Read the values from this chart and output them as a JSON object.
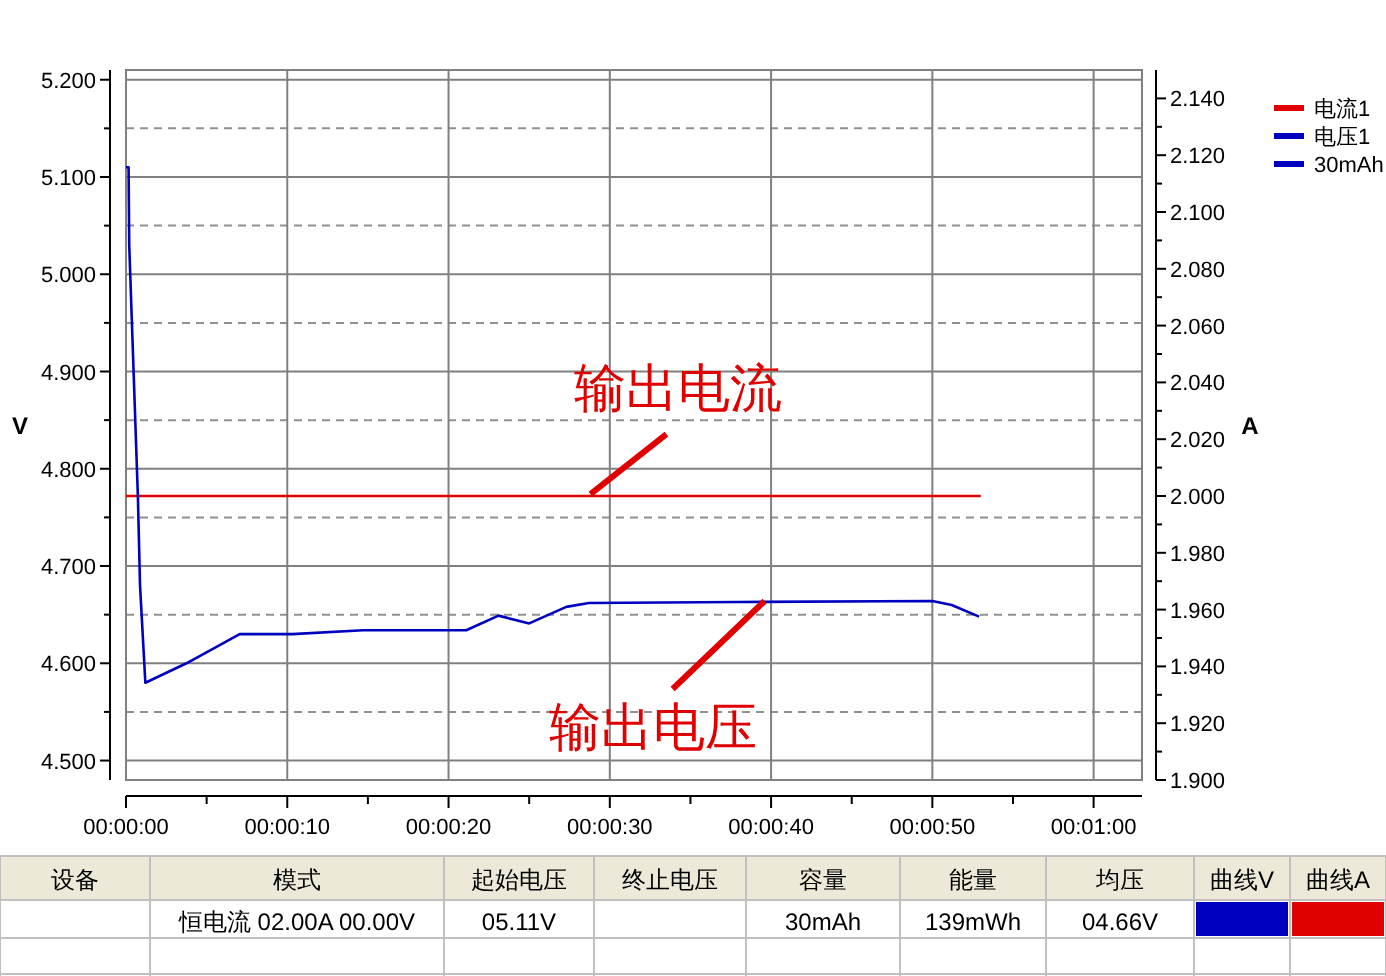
{
  "chart_data": {
    "type": "line",
    "xlabel": null,
    "ylabel": "V",
    "y2label": "A",
    "xlim": [
      0,
      63
    ],
    "xticks": [
      {
        "value": 0,
        "label": "00:00:00"
      },
      {
        "value": 10,
        "label": "00:00:10"
      },
      {
        "value": 20,
        "label": "00:00:20"
      },
      {
        "value": 30,
        "label": "00:00:30"
      },
      {
        "value": 40,
        "label": "00:00:40"
      },
      {
        "value": 50,
        "label": "00:00:50"
      },
      {
        "value": 60,
        "label": "00:01:00"
      }
    ],
    "ylim": [
      4.48,
      5.21
    ],
    "yticks": [
      {
        "value": 4.5,
        "label": "4.500"
      },
      {
        "value": 4.6,
        "label": "4.600"
      },
      {
        "value": 4.7,
        "label": "4.700"
      },
      {
        "value": 4.8,
        "label": "4.800"
      },
      {
        "value": 4.9,
        "label": "4.900"
      },
      {
        "value": 5.0,
        "label": "5.000"
      },
      {
        "value": 5.1,
        "label": "5.100"
      },
      {
        "value": 5.2,
        "label": "5.200"
      }
    ],
    "y2lim": [
      1.9,
      2.15
    ],
    "y2ticks": [
      {
        "value": 1.9,
        "label": "1.900"
      },
      {
        "value": 1.92,
        "label": "1.920"
      },
      {
        "value": 1.94,
        "label": "1.940"
      },
      {
        "value": 1.96,
        "label": "1.960"
      },
      {
        "value": 1.98,
        "label": "1.980"
      },
      {
        "value": 2.0,
        "label": "2.000"
      },
      {
        "value": 2.02,
        "label": "2.020"
      },
      {
        "value": 2.04,
        "label": "2.040"
      },
      {
        "value": 2.06,
        "label": "2.060"
      },
      {
        "value": 2.08,
        "label": "2.080"
      },
      {
        "value": 2.1,
        "label": "2.100"
      },
      {
        "value": 2.12,
        "label": "2.120"
      },
      {
        "value": 2.14,
        "label": "2.140"
      }
    ],
    "grid": true,
    "legend": "top right",
    "series": [
      {
        "name": "电流1",
        "color": "#e00000",
        "axis": "y2",
        "x": [
          0,
          53
        ],
        "values": [
          2.0,
          2.0
        ]
      },
      {
        "name": "电压1",
        "color": "#0000c0",
        "x": [
          0,
          0.16,
          0.2,
          0.45,
          0.74,
          0.87,
          1.2,
          3.75,
          7.05,
          10.3,
          14.7,
          21.1,
          23.1,
          25.0,
          27.3,
          28.7,
          38.0,
          50.0,
          51.2,
          52.9
        ],
        "values": [
          5.11,
          5.11,
          5.03,
          4.91,
          4.77,
          4.68,
          4.58,
          4.6,
          4.63,
          4.63,
          4.634,
          4.634,
          4.649,
          4.641,
          4.658,
          4.662,
          4.663,
          4.664,
          4.66,
          4.648
        ]
      },
      {
        "name": "30mAh",
        "color": "#0000c0"
      }
    ],
    "annotations": [
      {
        "text": "输出电流",
        "x": 28.8,
        "y": 4.774
      },
      {
        "text": "输出电压",
        "x": 39.6,
        "y": 4.664
      },
      "设备",
      "模式",
      "起始电压",
      "终止电压",
      "容量",
      "能量",
      "均压",
      "曲线V",
      "曲线A",
      "恒电流  02.00A  00.00V",
      "05.11V",
      "30mAh",
      "139mWh",
      "04.66V"
    ]
  }
}
